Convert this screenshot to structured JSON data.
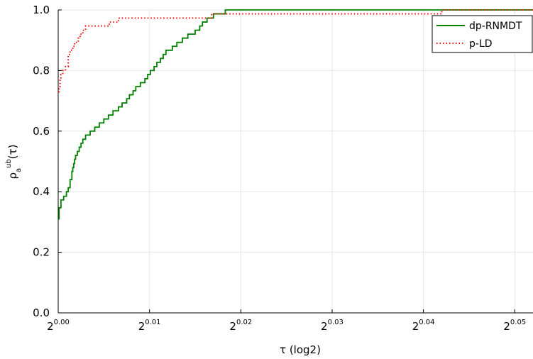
{
  "chart_data": {
    "type": "line",
    "title": "",
    "xlabel": "τ (log2)",
    "ylabel_base": "ρ",
    "ylabel_sub": "a",
    "ylabel_sup": "ub",
    "ylabel_tail": "(τ)",
    "xlim": [
      0,
      0.052
    ],
    "ylim": [
      0,
      1.0
    ],
    "x_ticks": [
      {
        "value": 0.0,
        "base": "2",
        "exp": "0.00"
      },
      {
        "value": 0.01,
        "base": "2",
        "exp": "0.01"
      },
      {
        "value": 0.02,
        "base": "2",
        "exp": "0.02"
      },
      {
        "value": 0.03,
        "base": "2",
        "exp": "0.03"
      },
      {
        "value": 0.04,
        "base": "2",
        "exp": "0.04"
      },
      {
        "value": 0.05,
        "base": "2",
        "exp": "0.05"
      }
    ],
    "y_ticks": [
      {
        "value": 0.0,
        "label": "0.0"
      },
      {
        "value": 0.2,
        "label": "0.2"
      },
      {
        "value": 0.4,
        "label": "0.4"
      },
      {
        "value": 0.6,
        "label": "0.6"
      },
      {
        "value": 0.8,
        "label": "0.8"
      },
      {
        "value": 1.0,
        "label": "1.0"
      }
    ],
    "grid": true,
    "legend_position": "top-right",
    "series": [
      {
        "name": "dp-RNMDT",
        "color": "#008000",
        "style": "solid",
        "x": [
          0,
          0.0001,
          0.0003,
          0.0006,
          0.0009,
          0.0011,
          0.0013,
          0.0015,
          0.0016,
          0.0017,
          0.0018,
          0.0019,
          0.0021,
          0.0023,
          0.0025,
          0.0027,
          0.003,
          0.0035,
          0.004,
          0.0045,
          0.005,
          0.0055,
          0.006,
          0.0066,
          0.007,
          0.0075,
          0.0078,
          0.0082,
          0.0085,
          0.009,
          0.0095,
          0.0098,
          0.0101,
          0.0105,
          0.0108,
          0.0112,
          0.0115,
          0.0118,
          0.0125,
          0.013,
          0.0136,
          0.0142,
          0.015,
          0.0155,
          0.0158,
          0.0163,
          0.017,
          0.0183,
          0.019,
          0.0194,
          0.0197,
          0.0215,
          0.0232,
          0.0248,
          0.0268,
          0.0278,
          0.0288,
          0.029,
          0.0338,
          0.0372,
          0.0402,
          0.0422,
          0.052
        ],
        "y": [
          0.31,
          0.347,
          0.373,
          0.385,
          0.4,
          0.413,
          0.44,
          0.467,
          0.48,
          0.493,
          0.507,
          0.52,
          0.533,
          0.547,
          0.56,
          0.573,
          0.587,
          0.6,
          0.613,
          0.627,
          0.64,
          0.653,
          0.667,
          0.68,
          0.693,
          0.707,
          0.72,
          0.733,
          0.747,
          0.76,
          0.773,
          0.787,
          0.8,
          0.813,
          0.827,
          0.84,
          0.853,
          0.867,
          0.88,
          0.893,
          0.907,
          0.92,
          0.933,
          0.947,
          0.96,
          0.973,
          0.987,
          1.0,
          1.0,
          1.0,
          1.0,
          1.0,
          1.0,
          1.0,
          1.0,
          1.0,
          1.0,
          1.0,
          1.0,
          1.0,
          1.0,
          1.0,
          1.0
        ]
      },
      {
        "name": "p-LD",
        "color": "#ff0000",
        "style": "dotted",
        "x": [
          0,
          0.0001,
          0.0002,
          0.0003,
          0.0005,
          0.0008,
          0.0011,
          0.0013,
          0.0016,
          0.0018,
          0.0022,
          0.0024,
          0.0027,
          0.003,
          0.0056,
          0.0066,
          0.0068,
          0.0168,
          0.0172,
          0.037,
          0.042,
          0.052
        ],
        "y": [
          0.73,
          0.747,
          0.773,
          0.787,
          0.8,
          0.813,
          0.853,
          0.867,
          0.88,
          0.893,
          0.907,
          0.92,
          0.933,
          0.947,
          0.96,
          0.973,
          0.973,
          0.987,
          0.987,
          0.987,
          1.0,
          1.0
        ]
      }
    ]
  }
}
